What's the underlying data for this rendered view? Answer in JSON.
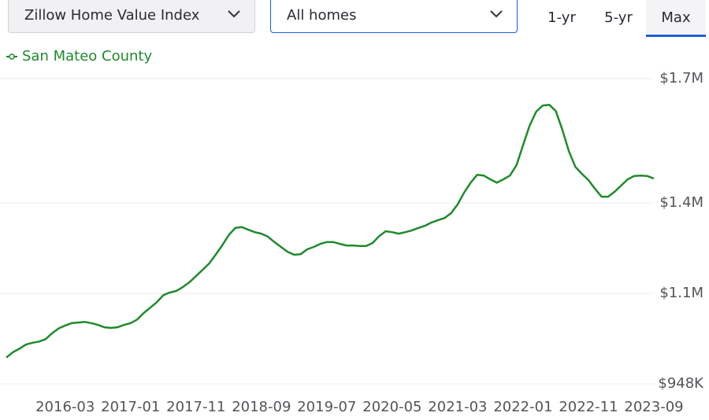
{
  "controls": {
    "index_select": "Zillow Home Value Index",
    "home_type_select": "All homes",
    "ranges": [
      "1-yr",
      "5-yr",
      "Max"
    ]
  },
  "chart_data": {
    "type": "line",
    "x": [
      "2015-06",
      "2015-07",
      "2015-08",
      "2015-09",
      "2015-10",
      "2015-11",
      "2015-12",
      "2016-01",
      "2016-02",
      "2016-03",
      "2016-04",
      "2016-05",
      "2016-06",
      "2016-07",
      "2016-08",
      "2016-09",
      "2016-10",
      "2016-11",
      "2016-12",
      "2017-01",
      "2017-02",
      "2017-03",
      "2017-04",
      "2017-05",
      "2017-06",
      "2017-07",
      "2017-08",
      "2017-09",
      "2017-10",
      "2017-11",
      "2017-12",
      "2018-01",
      "2018-02",
      "2018-03",
      "2018-04",
      "2018-05",
      "2018-06",
      "2018-07",
      "2018-08",
      "2018-09",
      "2018-10",
      "2018-11",
      "2018-12",
      "2019-01",
      "2019-02",
      "2019-03",
      "2019-04",
      "2019-05",
      "2019-06",
      "2019-07",
      "2019-08",
      "2019-09",
      "2019-10",
      "2019-11",
      "2019-12",
      "2020-01",
      "2020-02",
      "2020-03",
      "2020-04",
      "2020-05",
      "2020-06",
      "2020-07",
      "2020-08",
      "2020-09",
      "2020-10",
      "2020-11",
      "2020-12",
      "2021-01",
      "2021-02",
      "2021-03",
      "2021-04",
      "2021-05",
      "2021-06",
      "2021-07",
      "2021-08",
      "2021-09",
      "2021-10",
      "2021-11",
      "2021-12",
      "2022-01",
      "2022-02",
      "2022-03",
      "2022-04",
      "2022-05",
      "2022-06",
      "2022-07",
      "2022-08",
      "2022-09",
      "2022-10",
      "2022-11",
      "2022-12",
      "2023-01",
      "2023-02",
      "2023-03",
      "2023-04",
      "2023-05",
      "2023-06",
      "2023-07",
      "2023-08",
      "2023-09"
    ],
    "series": [
      {
        "name": "San Mateo County",
        "color": "#1f8a2b",
        "values": [
          992000,
          1001000,
          1007000,
          1014000,
          1017000,
          1019000,
          1023000,
          1033000,
          1041000,
          1046000,
          1050000,
          1051000,
          1052000,
          1050000,
          1047000,
          1043000,
          1042000,
          1043000,
          1047000,
          1050000,
          1056000,
          1067000,
          1076000,
          1085000,
          1097000,
          1103000,
          1108000,
          1121000,
          1137000,
          1157000,
          1178000,
          1199000,
          1228000,
          1259000,
          1293000,
          1317000,
          1320000,
          1311000,
          1303000,
          1298000,
          1288000,
          1270000,
          1254000,
          1238000,
          1228000,
          1230000,
          1246000,
          1254000,
          1264000,
          1270000,
          1270000,
          1264000,
          1259000,
          1259000,
          1257000,
          1257000,
          1267000,
          1290000,
          1306000,
          1303000,
          1298000,
          1303000,
          1309000,
          1317000,
          1324000,
          1335000,
          1343000,
          1350000,
          1366000,
          1395000,
          1425000,
          1449000,
          1468000,
          1466000,
          1457000,
          1449000,
          1457000,
          1466000,
          1491000,
          1539000,
          1586000,
          1620000,
          1635000,
          1637000,
          1622000,
          1577000,
          1525000,
          1487000,
          1470000,
          1455000,
          1434000,
          1415000,
          1415000,
          1427000,
          1442000,
          1457000,
          1465000,
          1466000,
          1465000,
          1459000
        ]
      }
    ],
    "xticks": [
      "2016-03",
      "2017-01",
      "2017-11",
      "2018-09",
      "2019-07",
      "2020-05",
      "2021-03",
      "2022-01",
      "2022-11",
      "2023-09"
    ],
    "ylim": [
      948000,
      1700000
    ],
    "yticks": [
      {
        "value": 948000,
        "label": "$948K"
      },
      {
        "value": 1100000,
        "label": "$1.1M"
      },
      {
        "value": 1400000,
        "label": "$1.4M"
      },
      {
        "value": 1700000,
        "label": "$1.7M"
      }
    ],
    "grid": true
  }
}
